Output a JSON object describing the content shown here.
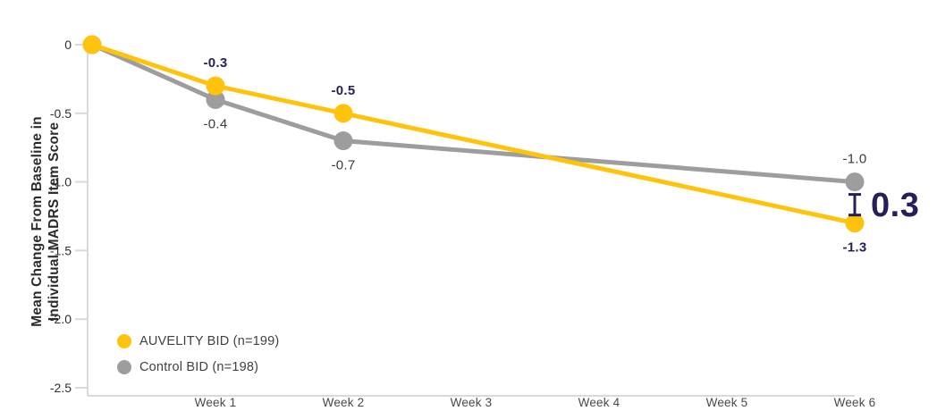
{
  "chart_data": {
    "type": "line",
    "title": "",
    "xlabel": "",
    "ylabel_lines": [
      "Mean Change From Baseline in",
      "Individual MADRS Item Score"
    ],
    "x_tick_labels": [
      "Week 1",
      "Week 2",
      "Week 3",
      "Week 4",
      "Week 5",
      "Week 6"
    ],
    "y_tick_labels": [
      "0",
      "-0.5",
      "-1.0",
      "-1.5",
      "-2.0",
      "-2.5"
    ],
    "y_tick_values": [
      0,
      -0.5,
      -1.0,
      -1.5,
      -2.0,
      -2.5
    ],
    "ylim": [
      0,
      -2.5
    ],
    "grid": "off",
    "legend_position": "bottom-left",
    "series": [
      {
        "name": "Control BID (n=198)",
        "color": "#9D9D9D",
        "label_color": "#3A3A3A",
        "label_weight": "normal",
        "points": [
          {
            "week": 0,
            "value": 0
          },
          {
            "week": 1,
            "value": -0.4,
            "label": "-0.4",
            "label_pos": "below"
          },
          {
            "week": 2,
            "value": -0.7,
            "label": "-0.7",
            "label_pos": "below"
          },
          {
            "week": 6,
            "value": -1.0,
            "label": "-1.0",
            "label_pos": "above"
          }
        ]
      },
      {
        "name": "AUVELITY BID (n=199)",
        "color": "#FFC30D",
        "label_color": "#271F55",
        "label_weight": "bold",
        "points": [
          {
            "week": 0,
            "value": 0
          },
          {
            "week": 1,
            "value": -0.3,
            "label": "-0.3",
            "label_pos": "above"
          },
          {
            "week": 2,
            "value": -0.5,
            "label": "-0.5",
            "label_pos": "above"
          },
          {
            "week": 6,
            "value": -1.3,
            "label": "-1.3",
            "label_pos": "below"
          }
        ]
      }
    ],
    "difference_annotation": {
      "text": "0.3",
      "week": 6,
      "from_value": -1.0,
      "to_value": -1.3,
      "color": "#271F55"
    },
    "legend": [
      {
        "label": "AUVELITY BID (n=199)",
        "color": "#FFC30D"
      },
      {
        "label": "Control BID (n=198)",
        "color": "#9D9D9D"
      }
    ],
    "colors": {
      "axis_line": "#D9D9D9",
      "tick_text": "#2F2F2F",
      "week_text": "#4A4A4A",
      "accent_navy": "#271F55",
      "brand_yellow": "#FFC30D",
      "control_gray": "#9D9D9D"
    }
  }
}
